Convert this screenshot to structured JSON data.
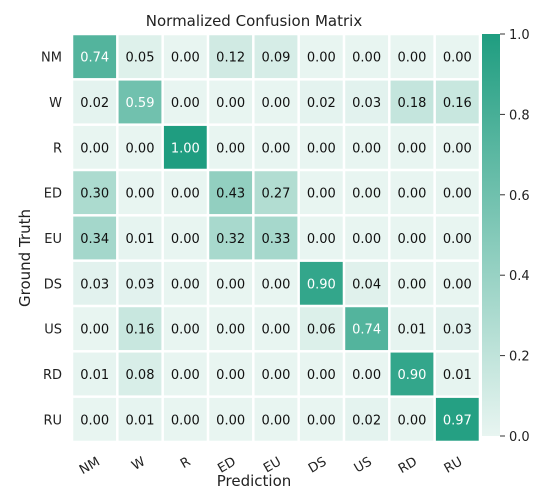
{
  "chart_data": {
    "type": "heatmap",
    "title": "Normalized Confusion Matrix",
    "xlabel": "Prediction",
    "ylabel": "Ground Truth",
    "x_categories": [
      "NM",
      "W",
      "R",
      "ED",
      "EU",
      "DS",
      "US",
      "RD",
      "RU"
    ],
    "y_categories": [
      "NM",
      "W",
      "R",
      "ED",
      "EU",
      "DS",
      "US",
      "RD",
      "RU"
    ],
    "values": [
      [
        0.74,
        0.05,
        0.0,
        0.12,
        0.09,
        0.0,
        0.0,
        0.0,
        0.0
      ],
      [
        0.02,
        0.59,
        0.0,
        0.0,
        0.0,
        0.02,
        0.03,
        0.18,
        0.16
      ],
      [
        0.0,
        0.0,
        1.0,
        0.0,
        0.0,
        0.0,
        0.0,
        0.0,
        0.0
      ],
      [
        0.3,
        0.0,
        0.0,
        0.43,
        0.27,
        0.0,
        0.0,
        0.0,
        0.0
      ],
      [
        0.34,
        0.01,
        0.0,
        0.32,
        0.33,
        0.0,
        0.0,
        0.0,
        0.0
      ],
      [
        0.03,
        0.03,
        0.0,
        0.0,
        0.0,
        0.9,
        0.04,
        0.0,
        0.0
      ],
      [
        0.0,
        0.16,
        0.0,
        0.0,
        0.0,
        0.06,
        0.74,
        0.01,
        0.03
      ],
      [
        0.01,
        0.08,
        0.0,
        0.0,
        0.0,
        0.0,
        0.0,
        0.9,
        0.01
      ],
      [
        0.0,
        0.01,
        0.0,
        0.0,
        0.0,
        0.0,
        0.02,
        0.0,
        0.97
      ]
    ],
    "value_range": [
      0.0,
      1.0
    ],
    "colorbar": {
      "ticks": [
        0.0,
        0.2,
        0.4,
        0.6,
        0.8,
        1.0
      ],
      "tick_labels": [
        "0.0",
        "0.2",
        "0.4",
        "0.6",
        "0.8",
        "1.0"
      ],
      "placement": "right"
    },
    "colors": {
      "low": "#e8f5f1",
      "high": "#1f9d80",
      "text_dark": "#111111",
      "text_light": "#ffffff",
      "cell_border": "#ffffff"
    },
    "grid": false
  }
}
